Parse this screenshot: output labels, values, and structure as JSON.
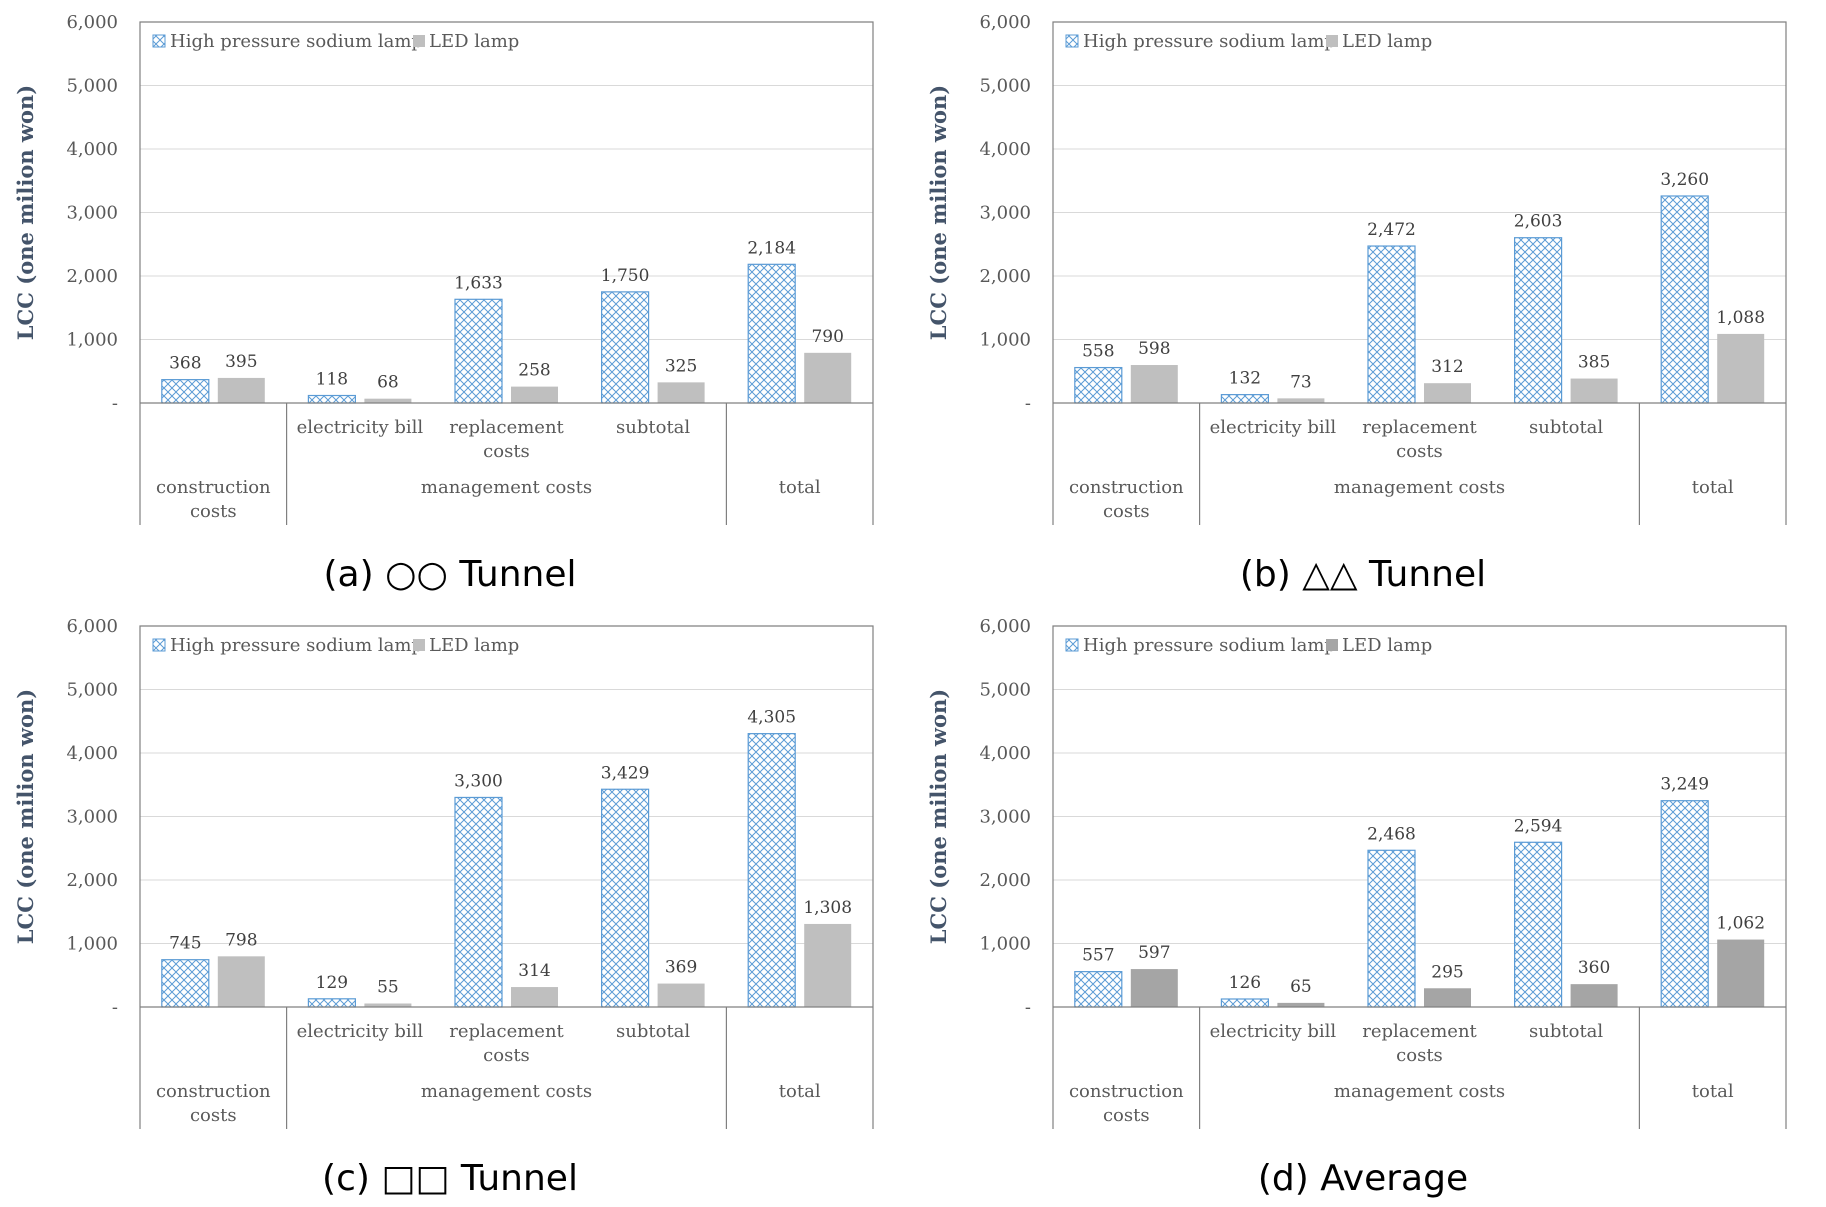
{
  "chart_data": [
    {
      "type": "bar",
      "caption": "(a) ○○ Tunnel",
      "ylabel": "LCC (one milion won)",
      "ylim": [
        0,
        6000
      ],
      "yticks": [
        "-",
        "1,000",
        "2,000",
        "3,000",
        "4,000",
        "5,000",
        "6,000"
      ],
      "categories": [
        [
          "construction",
          "costs"
        ],
        [
          "electricity bill"
        ],
        [
          "replacement",
          "costs"
        ],
        [
          "subtotal"
        ],
        [
          "total"
        ]
      ],
      "groups": [
        {
          "label": [
            "construction",
            "costs"
          ],
          "span": [
            0,
            0
          ]
        },
        {
          "label": [
            "management costs"
          ],
          "span": [
            1,
            3
          ]
        },
        {
          "label": [
            "total"
          ],
          "span": [
            4,
            4
          ]
        }
      ],
      "legend_position": "top-left",
      "series": [
        {
          "name": "High pressure sodium lamp",
          "values": [
            368,
            118,
            1633,
            1750,
            2184
          ],
          "labels": [
            "368",
            "118",
            "1,633",
            "1,750",
            "2,184"
          ]
        },
        {
          "name": "LED lamp",
          "values": [
            395,
            68,
            258,
            325,
            790
          ],
          "labels": [
            "395",
            "68",
            "258",
            "325",
            "790"
          ]
        }
      ]
    },
    {
      "type": "bar",
      "caption": "(b) △△ Tunnel",
      "ylabel": "LCC (one milion won)",
      "ylim": [
        0,
        6000
      ],
      "yticks": [
        "-",
        "1,000",
        "2,000",
        "3,000",
        "4,000",
        "5,000",
        "6,000"
      ],
      "categories": [
        [
          "construction",
          "costs"
        ],
        [
          "electricity bill"
        ],
        [
          "replacement",
          "costs"
        ],
        [
          "subtotal"
        ],
        [
          "total"
        ]
      ],
      "groups": [
        {
          "label": [
            "construction",
            "costs"
          ],
          "span": [
            0,
            0
          ]
        },
        {
          "label": [
            "management costs"
          ],
          "span": [
            1,
            3
          ]
        },
        {
          "label": [
            "total"
          ],
          "span": [
            4,
            4
          ]
        }
      ],
      "legend_position": "top-left",
      "series": [
        {
          "name": "High pressure sodium lamp",
          "values": [
            558,
            132,
            2472,
            2603,
            3260
          ],
          "labels": [
            "558",
            "132",
            "2,472",
            "2,603",
            "3,260"
          ]
        },
        {
          "name": "LED lamp",
          "values": [
            598,
            73,
            312,
            385,
            1088
          ],
          "labels": [
            "598",
            "73",
            "312",
            "385",
            "1,088"
          ]
        }
      ]
    },
    {
      "type": "bar",
      "caption": "(c) □□ Tunnel",
      "ylabel": "LCC (one milion won)",
      "ylim": [
        0,
        6000
      ],
      "yticks": [
        "-",
        "1,000",
        "2,000",
        "3,000",
        "4,000",
        "5,000",
        "6,000"
      ],
      "categories": [
        [
          "construction",
          "costs"
        ],
        [
          "electricity bill"
        ],
        [
          "replacement",
          "costs"
        ],
        [
          "subtotal"
        ],
        [
          "total"
        ]
      ],
      "groups": [
        {
          "label": [
            "construction",
            "costs"
          ],
          "span": [
            0,
            0
          ]
        },
        {
          "label": [
            "management costs"
          ],
          "span": [
            1,
            3
          ]
        },
        {
          "label": [
            "total"
          ],
          "span": [
            4,
            4
          ]
        }
      ],
      "legend_position": "top-left",
      "series": [
        {
          "name": "High pressure sodium lamp",
          "values": [
            745,
            129,
            3300,
            3429,
            4305
          ],
          "labels": [
            "745",
            "129",
            "3,300",
            "3,429",
            "4,305"
          ]
        },
        {
          "name": "LED lamp",
          "values": [
            798,
            55,
            314,
            369,
            1308
          ],
          "labels": [
            "798",
            "55",
            "314",
            "369",
            "1,308"
          ]
        }
      ]
    },
    {
      "type": "bar",
      "caption": "(d) Average",
      "ylabel": "LCC (one milion won)",
      "ylim": [
        0,
        6000
      ],
      "yticks": [
        "-",
        "1,000",
        "2,000",
        "3,000",
        "4,000",
        "5,000",
        "6,000"
      ],
      "categories": [
        [
          "construction",
          "costs"
        ],
        [
          "electricity bill"
        ],
        [
          "replacement",
          "costs"
        ],
        [
          "subtotal"
        ],
        [
          "total"
        ]
      ],
      "groups": [
        {
          "label": [
            "construction",
            "costs"
          ],
          "span": [
            0,
            0
          ]
        },
        {
          "label": [
            "management costs"
          ],
          "span": [
            1,
            3
          ]
        },
        {
          "label": [
            "total"
          ],
          "span": [
            4,
            4
          ]
        }
      ],
      "legend_position": "top-left",
      "series": [
        {
          "name": "High pressure sodium lamp",
          "values": [
            557,
            126,
            2468,
            2594,
            3249
          ],
          "labels": [
            "557",
            "126",
            "2,468",
            "2,594",
            "3,249"
          ]
        },
        {
          "name": "LED lamp",
          "values": [
            597,
            65,
            295,
            360,
            1062
          ],
          "labels": [
            "597",
            "65",
            "295",
            "360",
            "1,062"
          ]
        }
      ]
    }
  ],
  "colors": {
    "hatch": "#5b9bd5",
    "led_fill": "#bfbfbf",
    "led_fill_average": "#a5a5a5",
    "frame": "#808080",
    "grid": "#d9d9d9",
    "ylabel": "#44546a"
  }
}
